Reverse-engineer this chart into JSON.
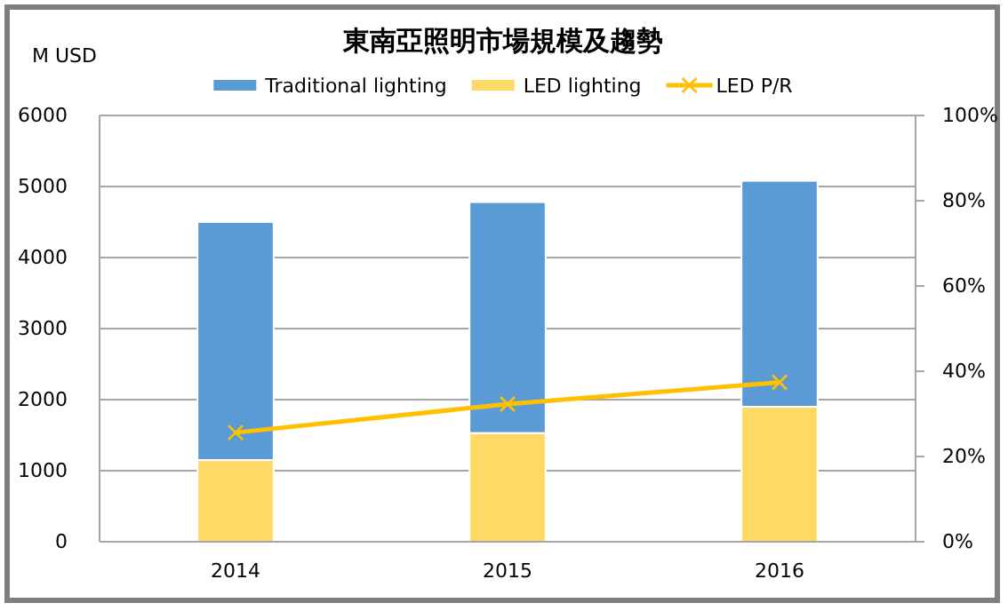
{
  "chart_data": {
    "type": "bar",
    "title": "東南亞照明市場規模及趨勢",
    "ylabel": "M USD",
    "categories": [
      "2014",
      "2015",
      "2016"
    ],
    "stacked": true,
    "series": [
      {
        "name": "LED lighting",
        "color": "#ffd966",
        "values": [
          1150,
          1530,
          1900
        ]
      },
      {
        "name": "Traditional lighting",
        "color": "#5b9bd5",
        "values": [
          3350,
          3250,
          3180
        ]
      },
      {
        "name": "LED P/R",
        "type": "line",
        "axis": "y2",
        "color": "#ffc000",
        "marker": "cross",
        "values": [
          25.6,
          32.3,
          37.4
        ]
      }
    ],
    "ylim": [
      0,
      6000
    ],
    "yticks": [
      0,
      1000,
      2000,
      3000,
      4000,
      5000,
      6000
    ],
    "y2lim": [
      0,
      100
    ],
    "y2ticks": [
      {
        "value": 0,
        "label": "0%"
      },
      {
        "value": 20,
        "label": "20%"
      },
      {
        "value": 40,
        "label": "40%"
      },
      {
        "value": 60,
        "label": "60%"
      },
      {
        "value": 80,
        "label": "80%"
      },
      {
        "value": 100,
        "label": "100%"
      }
    ],
    "grid": "y",
    "legend": "top"
  }
}
